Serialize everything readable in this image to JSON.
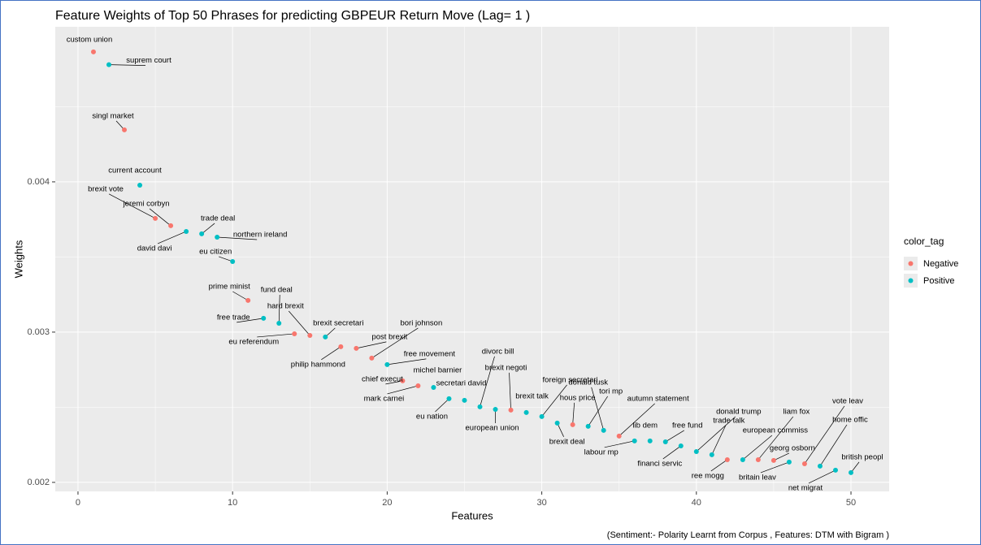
{
  "chart_data": {
    "type": "scatter",
    "title": "Feature Weights of Top 50 Phrases for predicting GBPEUR Return Move (Lag= 1 )",
    "x_label": "Features",
    "y_label": "Weights",
    "caption": "(Sentiment:- Polarity Learnt from Corpus , Features: DTM with Bigram )",
    "legend_title": "color_tag",
    "legend_position": "right",
    "grid": true,
    "xlim": [
      -1.47,
      52.47
    ],
    "xticks": [
      0,
      10,
      20,
      30,
      40,
      50
    ],
    "ylim": [
      0.00194,
      0.005032
    ],
    "yticks": [
      0.002,
      0.003,
      0.004
    ],
    "series": [
      {
        "name": "Negative",
        "color": "#F8766D",
        "x": [
          1,
          3,
          5,
          6,
          11,
          14,
          15,
          17,
          18,
          19,
          21,
          22,
          28,
          32,
          35,
          42,
          44,
          45,
          47
        ],
        "values": [
          0.004865,
          0.004346,
          0.003757,
          0.003708,
          0.003211,
          0.002989,
          0.002978,
          0.002903,
          0.002892,
          0.002827,
          0.002676,
          0.002643,
          0.002481,
          0.002384,
          0.002308,
          0.002151,
          0.002151,
          0.002146,
          0.002124
        ],
        "labels": [
          "custom union",
          "singl market",
          "brexit vote",
          "jeremi corbyn",
          "prime minist",
          "eu referendum",
          "hard brexit",
          "philip hammond",
          "post brexit",
          "bori johnson",
          "chief execut",
          "mark carnei",
          "brexit negoti",
          "hous price",
          "autumn statement",
          "ree mogg",
          "liam fox",
          "georg osborn",
          "vote leav"
        ]
      },
      {
        "name": "Positive",
        "color": "#00BFC4",
        "x": [
          2,
          4,
          7,
          8,
          9,
          10,
          12,
          13,
          16,
          20,
          23,
          24,
          25,
          26,
          27,
          29,
          30,
          31,
          33,
          34,
          36,
          37,
          38,
          39,
          40,
          41,
          43,
          46,
          48,
          49,
          50
        ],
        "values": [
          0.00478,
          0.003978,
          0.00367,
          0.003654,
          0.003632,
          0.00347,
          0.003092,
          0.003059,
          0.002968,
          0.002784,
          0.002632,
          0.002557,
          0.002546,
          0.002503,
          0.002486,
          0.002465,
          0.002438,
          0.002395,
          0.002373,
          0.002346,
          0.002276,
          0.002276,
          0.00227,
          0.002243,
          0.002205,
          0.002184,
          0.002151,
          0.002135,
          0.002108,
          0.002081,
          0.002065
        ],
        "labels": [
          "suprem court",
          "current account",
          "david davi",
          "trade deal",
          "northern ireland",
          "eu citizen",
          "free trade",
          "fund deal",
          "brexit secretari",
          "free movement",
          "michel barnier",
          "eu nation",
          "secretari david",
          "divorc bill",
          "european union",
          "brexit talk",
          "foreign secretari",
          "brexit deal",
          "tori mp",
          "donald tusk",
          "labour mp",
          "lib dem",
          "free fund",
          "financi servic",
          "donald trump",
          "trade talk",
          "european commiss",
          "britain leav",
          "home offic",
          "net migrat",
          "british peopl"
        ]
      }
    ]
  }
}
